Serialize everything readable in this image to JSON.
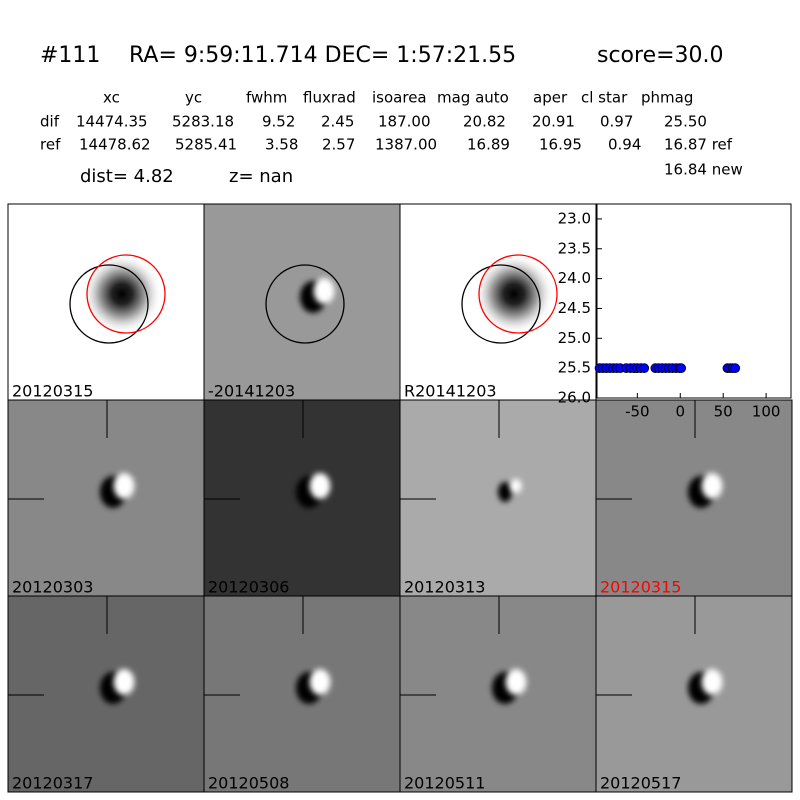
{
  "header": {
    "title": [
      "#111",
      "RA= 9:59:11.714 DEC= 1:57:21.55",
      "score=30.0"
    ]
  },
  "table": {
    "columns": [
      "xc",
      "yc",
      "fwhm",
      "fluxrad",
      "isoarea",
      "mag auto",
      "aper",
      "cl star",
      "phmag"
    ],
    "rows": [
      {
        "label": "dif",
        "cells": [
          "14474.35",
          "5283.18",
          "9.52",
          "2.45",
          "187.00",
          "20.82",
          "20.91",
          "0.97",
          "25.50"
        ]
      },
      {
        "label": "ref",
        "cells": [
          "14478.62",
          "5285.41",
          "3.58",
          "2.57",
          "1387.00",
          "16.89",
          "16.95",
          "0.94",
          "16.87 ref"
        ]
      }
    ],
    "extra": "16.84 new",
    "dist": "dist=  4.82",
    "z": "z=   nan"
  },
  "panels": [
    "20120315",
    "-20141203",
    "R20141203",
    "20120303",
    "20120306",
    "20120313",
    "20120315",
    "20120317",
    "20120508",
    "20120511",
    "20120517"
  ],
  "chart_data": {
    "type": "scatter",
    "color": "#0000ff",
    "invert_y": true,
    "x": [
      -94,
      -90,
      -86,
      -82,
      -78,
      -74,
      -70,
      -63,
      -58,
      -54,
      -50,
      -46,
      -42,
      -29,
      -25,
      -21,
      -17,
      -13,
      -9,
      -5,
      -1,
      1,
      55,
      58,
      61,
      64
    ],
    "y": [
      25.5,
      25.5,
      25.5,
      25.5,
      25.5,
      25.5,
      25.5,
      25.5,
      25.5,
      25.5,
      25.5,
      25.5,
      25.5,
      25.5,
      25.5,
      25.5,
      25.5,
      25.5,
      25.5,
      25.5,
      25.5,
      25.5,
      25.5,
      25.5,
      25.5,
      25.5
    ],
    "xlim": [
      -97,
      129
    ],
    "ylim": [
      22.75,
      26.0
    ],
    "xticks": [
      -50,
      0,
      50,
      100
    ],
    "yticks": [
      {
        "value": 23.0,
        "label": "23.0"
      },
      {
        "value": 23.5,
        "label": "23.5"
      },
      {
        "value": 24.0,
        "label": "24.0"
      },
      {
        "value": 24.5,
        "label": "24.5"
      },
      {
        "value": 25.0,
        "label": "25.0"
      },
      {
        "value": 25.5,
        "label": "25.5"
      },
      {
        "value": 26.0,
        "label": "26.0"
      }
    ]
  }
}
